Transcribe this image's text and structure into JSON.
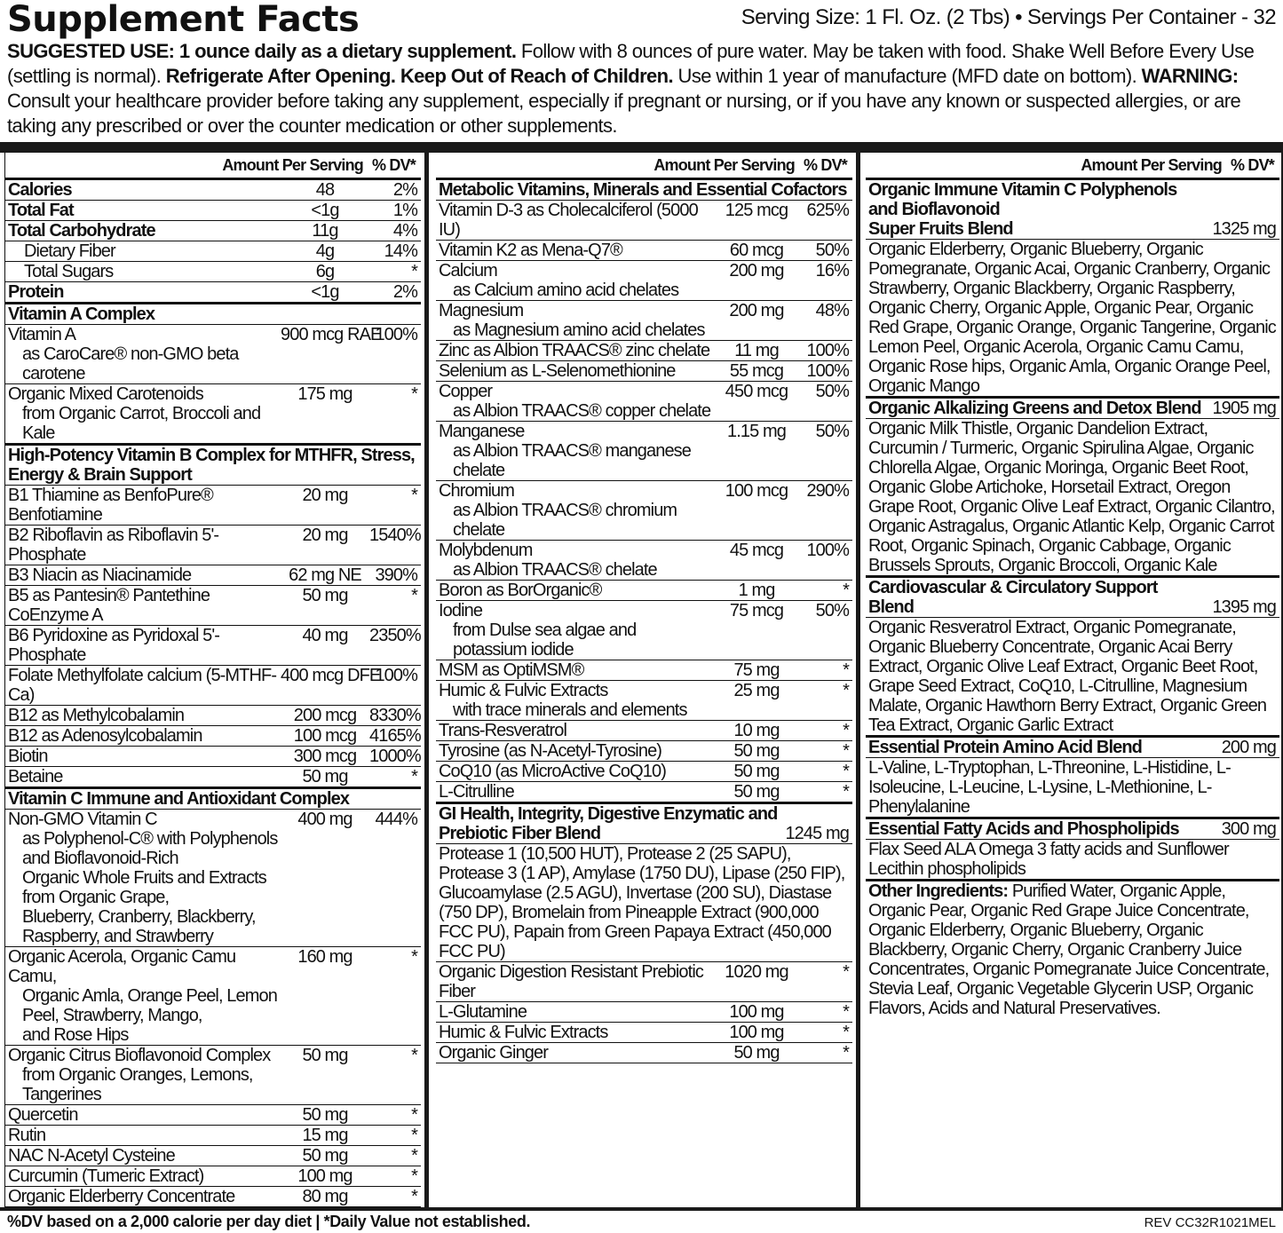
{
  "header": {
    "title": "Supplement Facts",
    "serving": "Serving Size: 1 Fl. Oz. (2 Tbs) • Servings Per Container - 32"
  },
  "suggested_use": [
    {
      "t": "SUGGESTED USE: 1 ounce daily as a dietary supplement.",
      "b": true
    },
    {
      "t": " Follow with 8 ounces of pure water. May be taken with food. Shake Well Before Every Use (settling is normal). ",
      "b": false
    },
    {
      "t": "Refrigerate After Opening. Keep Out of Reach of Children.",
      "b": true
    },
    {
      "t": " Use within 1 year of manufacture (MFD date on bottom).  ",
      "b": false
    },
    {
      "t": "WARNING:",
      "b": true
    },
    {
      "t": " Consult your healthcare provider before taking any supplement, especially if pregnant or nursing, or if you have any known or suspected allergies, or are taking any prescribed or over the counter medication or other supplements.",
      "b": false
    }
  ],
  "table_header": {
    "amount": "Amount Per Serving",
    "dv": "% DV*"
  },
  "columns": [
    {
      "rows": [
        {
          "type": "macro",
          "name": "Calories",
          "amount": "48",
          "dv": "2%"
        },
        {
          "type": "macro",
          "name": "Total Fat",
          "amount": "<1g",
          "dv": "1%"
        },
        {
          "type": "macro",
          "name": "Total Carbohydrate",
          "amount": "11g",
          "dv": "4%"
        },
        {
          "type": "indent",
          "name": "Dietary Fiber",
          "amount": "4g",
          "dv": "14%"
        },
        {
          "type": "indent",
          "name": "Total Sugars",
          "amount": "6g",
          "dv": "*"
        },
        {
          "type": "macro",
          "name": "Protein",
          "amount": "<1g",
          "dv": "2%",
          "group_end": true
        },
        {
          "type": "section",
          "name": "Vitamin A Complex"
        },
        {
          "type": "item",
          "name": "Vitamin A",
          "amount": "900 mcg RAE",
          "dv": "100%",
          "sub": [
            "as CaroCare® non-GMO beta carotene"
          ]
        },
        {
          "type": "item",
          "name": "Organic Mixed Carotenoids",
          "amount": "175 mg",
          "dv": "*",
          "sub": [
            "from Organic Carrot, Broccoli and Kale"
          ],
          "group_end": true
        },
        {
          "type": "section",
          "name": "High-Potency Vitamin B Complex for MTHFR, Stress,",
          "sub": [
            "Energy & Brain Support"
          ]
        },
        {
          "type": "item",
          "name": "B1 Thiamine as BenfoPure® Benfotiamine",
          "amount": "20 mg",
          "dv": "*"
        },
        {
          "type": "item",
          "name": "B2 Riboflavin as Riboflavin 5'-Phosphate",
          "amount": "20 mg",
          "dv": "1540%"
        },
        {
          "type": "item",
          "name": "B3 Niacin as Niacinamide",
          "amount": "62 mg NE",
          "dv": "390%"
        },
        {
          "type": "item",
          "name": "B5 as Pantesin® Pantethine CoEnzyme A",
          "amount": "50 mg",
          "dv": "*"
        },
        {
          "type": "item",
          "name": "B6 Pyridoxine as Pyridoxal 5'-Phosphate",
          "amount": "40 mg",
          "dv": "2350%"
        },
        {
          "type": "item",
          "name": "Folate Methylfolate calcium (5-MTHF-Ca)",
          "amount": "400 mcg DFE",
          "dv": "100%"
        },
        {
          "type": "item",
          "name": "B12 as Methylcobalamin",
          "amount": "200 mcg",
          "dv": "8330%"
        },
        {
          "type": "item",
          "name": "B12 as Adenosylcobalamin",
          "amount": "100 mcg",
          "dv": "4165%"
        },
        {
          "type": "item",
          "name": "Biotin",
          "amount": "300 mcg",
          "dv": "1000%"
        },
        {
          "type": "item",
          "name": "Betaine",
          "amount": "50 mg",
          "dv": "*",
          "group_end": true
        },
        {
          "type": "section",
          "name": "Vitamin C Immune and Antioxidant Complex"
        },
        {
          "type": "item",
          "name": "Non-GMO Vitamin C",
          "amount": "400 mg",
          "dv": "444%",
          "sub": [
            "as Polyphenol-C® with Polyphenols and Bioflavonoid-Rich",
            "Organic Whole Fruits and Extracts from Organic Grape,",
            "Blueberry, Cranberry, Blackberry, Raspberry, and Strawberry"
          ]
        },
        {
          "type": "item",
          "name": "Organic Acerola, Organic Camu Camu,",
          "amount": "160 mg",
          "dv": "*",
          "sub": [
            "Organic Amla, Orange Peel, Lemon Peel, Strawberry, Mango,",
            "and Rose Hips"
          ]
        },
        {
          "type": "item",
          "name": "Organic Citrus Bioflavonoid Complex",
          "amount": "50 mg",
          "dv": "*",
          "sub": [
            "from Organic Oranges, Lemons, Tangerines"
          ]
        },
        {
          "type": "item",
          "name": "Quercetin",
          "amount": "50 mg",
          "dv": "*"
        },
        {
          "type": "item",
          "name": "Rutin",
          "amount": "15 mg",
          "dv": "*"
        },
        {
          "type": "item",
          "name": "NAC N-Acetyl Cysteine",
          "amount": "50 mg",
          "dv": "*"
        },
        {
          "type": "item",
          "name": "Curcumin (Tumeric Extract)",
          "amount": "100 mg",
          "dv": "*"
        },
        {
          "type": "item",
          "name": "Organic Elderberry Concentrate",
          "amount": "80 mg",
          "dv": "*"
        }
      ]
    },
    {
      "rows": [
        {
          "type": "section",
          "name": "Metabolic Vitamins, Minerals and Essential Cofactors"
        },
        {
          "type": "item",
          "name": "Vitamin D-3 as Cholecalciferol (5000 IU)",
          "amount": "125 mcg",
          "dv": "625%"
        },
        {
          "type": "item",
          "name": "Vitamin K2 as Mena-Q7®",
          "amount": "60 mcg",
          "dv": "50%"
        },
        {
          "type": "item",
          "name": "Calcium",
          "amount": "200 mg",
          "dv": "16%",
          "sub": [
            "as Calcium amino acid chelates"
          ]
        },
        {
          "type": "item",
          "name": "Magnesium",
          "amount": "200 mg",
          "dv": "48%",
          "sub": [
            "as Magnesium amino acid chelates"
          ]
        },
        {
          "type": "item",
          "name": "Zinc as Albion TRAACS® zinc chelate",
          "amount": "11 mg",
          "dv": "100%"
        },
        {
          "type": "item",
          "name": "Selenium as L-Selenomethionine",
          "amount": "55 mcg",
          "dv": "100%"
        },
        {
          "type": "item",
          "name": "Copper",
          "amount": "450 mcg",
          "dv": "50%",
          "sub": [
            "as Albion TRAACS® copper chelate"
          ]
        },
        {
          "type": "item",
          "name": "Manganese",
          "amount": "1.15 mg",
          "dv": "50%",
          "sub": [
            "as Albion TRAACS® manganese chelate"
          ]
        },
        {
          "type": "item",
          "name": "Chromium",
          "amount": "100 mcg",
          "dv": "290%",
          "sub": [
            "as Albion TRAACS® chromium chelate"
          ]
        },
        {
          "type": "item",
          "name": "Molybdenum",
          "amount": "45 mcg",
          "dv": "100%",
          "sub": [
            "as Albion TRAACS® chelate"
          ]
        },
        {
          "type": "item",
          "name": "Boron as BorOrganic®",
          "amount": "1 mg",
          "dv": "*"
        },
        {
          "type": "item",
          "name": "Iodine",
          "amount": "75 mcg",
          "dv": "50%",
          "sub": [
            "from Dulse sea algae and potassium iodide"
          ]
        },
        {
          "type": "item",
          "name": "MSM as OptiMSM®",
          "amount": "75 mg",
          "dv": "*"
        },
        {
          "type": "item",
          "name": "Humic & Fulvic Extracts",
          "amount": "25 mg",
          "dv": "*",
          "sub": [
            "with trace minerals and elements"
          ]
        },
        {
          "type": "item",
          "name": "Trans-Resveratrol",
          "amount": "10 mg",
          "dv": "*"
        },
        {
          "type": "item",
          "name": "Tyrosine (as N-Acetyl-Tyrosine)",
          "amount": "50 mg",
          "dv": "*"
        },
        {
          "type": "item",
          "name": "CoQ10 (as MicroActive CoQ10)",
          "amount": "50 mg",
          "dv": "*"
        },
        {
          "type": "item",
          "name": "L-Citrulline",
          "amount": "50 mg",
          "dv": "*",
          "group_end": true
        },
        {
          "type": "blend",
          "title": [
            "GI Health, Integrity, Digestive Enzymatic and",
            "Prebiotic Fiber Blend"
          ],
          "amount": "1245 mg",
          "text": "Protease 1 (10,500 HUT), Protease 2 (25 SAPU), Protease 3 (1 AP), Amylase (1750 DU), Lipase (250 FIP), Glucoamylase (2.5 AGU), Invertase (200 SU), Diastase (750 DP), Bromelain from Pineapple Extract (900,000 FCC PU), Papain from Green Papaya Extract (450,000 FCC PU)",
          "text_end": false
        },
        {
          "type": "item",
          "name": "Organic Digestion Resistant Prebiotic Fiber",
          "amount": "1020 mg",
          "dv": "*"
        },
        {
          "type": "item",
          "name": "L-Glutamine",
          "amount": "100 mg",
          "dv": "*"
        },
        {
          "type": "item",
          "name": "Humic & Fulvic Extracts",
          "amount": "100 mg",
          "dv": "*"
        },
        {
          "type": "item",
          "name": "Organic Ginger",
          "amount": "50 mg",
          "dv": "*"
        }
      ]
    },
    {
      "rows": [
        {
          "type": "blend",
          "title": [
            "Organic Immune Vitamin C Polyphenols and Bioflavonoid",
            "Super Fruits Blend"
          ],
          "amount": "1325 mg",
          "text": "Organic Elderberry, Organic Blueberry, Organic Pomegranate, Organic Acai, Organic Cranberry, Organic Strawberry, Organic Blackberry, Organic Raspberry, Organic Cherry, Organic Apple, Organic Pear, Organic Red Grape, Organic Orange, Organic Tangerine, Organic Lemon Peel, Organic Acerola, Organic Camu Camu, Organic Rose hips, Organic Amla, Organic Orange Peel, Organic Mango",
          "text_end": true
        },
        {
          "type": "blend",
          "title": [
            "Organic Alkalizing Greens and Detox Blend"
          ],
          "amount": "1905 mg",
          "text": "Organic Milk Thistle, Organic Dandelion Extract, Curcumin / Turmeric, Organic Spirulina Algae, Organic Chlorella Algae, Organic Moringa, Organic Beet Root, Organic Globe Artichoke, Horsetail Extract, Oregon Grape Root, Organic Olive Leaf Extract, Organic Cilantro, Organic Astragalus, Organic Atlantic Kelp, Organic Carrot Root, Organic Spinach, Organic Cabbage, Organic Brussels Sprouts, Organic Broccoli, Organic Kale",
          "text_end": true
        },
        {
          "type": "blend",
          "title": [
            "Cardiovascular & Circulatory Support Blend"
          ],
          "amount": "1395 mg",
          "text": "Organic Resveratrol Extract, Organic Pomegranate, Organic Blueberry Concentrate, Organic Acai Berry Extract, Organic Olive Leaf Extract, Organic Beet Root, Grape Seed Extract, CoQ10, L-Citrulline, Magnesium Malate, Organic Hawthorn Berry Extract, Organic Green Tea Extract, Organic Garlic Extract",
          "text_end": true
        },
        {
          "type": "blend",
          "title": [
            "Essential Protein Amino Acid Blend"
          ],
          "amount": "200 mg",
          "text": "L-Valine, L-Tryptophan, L-Threonine, L-Histidine, L-Isoleucine, L-Leucine, L-Lysine, L-Methionine, L-Phenylalanine",
          "text_end": true
        },
        {
          "type": "blend",
          "title": [
            "Essential Fatty Acids and Phospholipids"
          ],
          "amount": "300 mg",
          "text": "Flax Seed ALA Omega 3 fatty acids and Sunflower Lecithin phospholipids",
          "text_end": true
        },
        {
          "type": "ingredients",
          "label": "Other Ingredients:",
          "text": " Purified Water, Organic Apple, Organic Pear, Organic Red Grape Juice Concentrate, Organic Elderberry, Organic Blueberry, Organic Blackberry, Organic Cherry, Organic Cranberry Juice Concentrates, Organic Pomegranate Juice Concentrate, Stevia Leaf, Organic Vegetable Glycerin USP, Organic Flavors, Acids and Natural Preservatives."
        }
      ]
    }
  ],
  "footer": {
    "note": "%DV based on a 2,000 calorie per day diet | *Daily Value not established.",
    "rev": "REV CC32R1021MEL"
  }
}
